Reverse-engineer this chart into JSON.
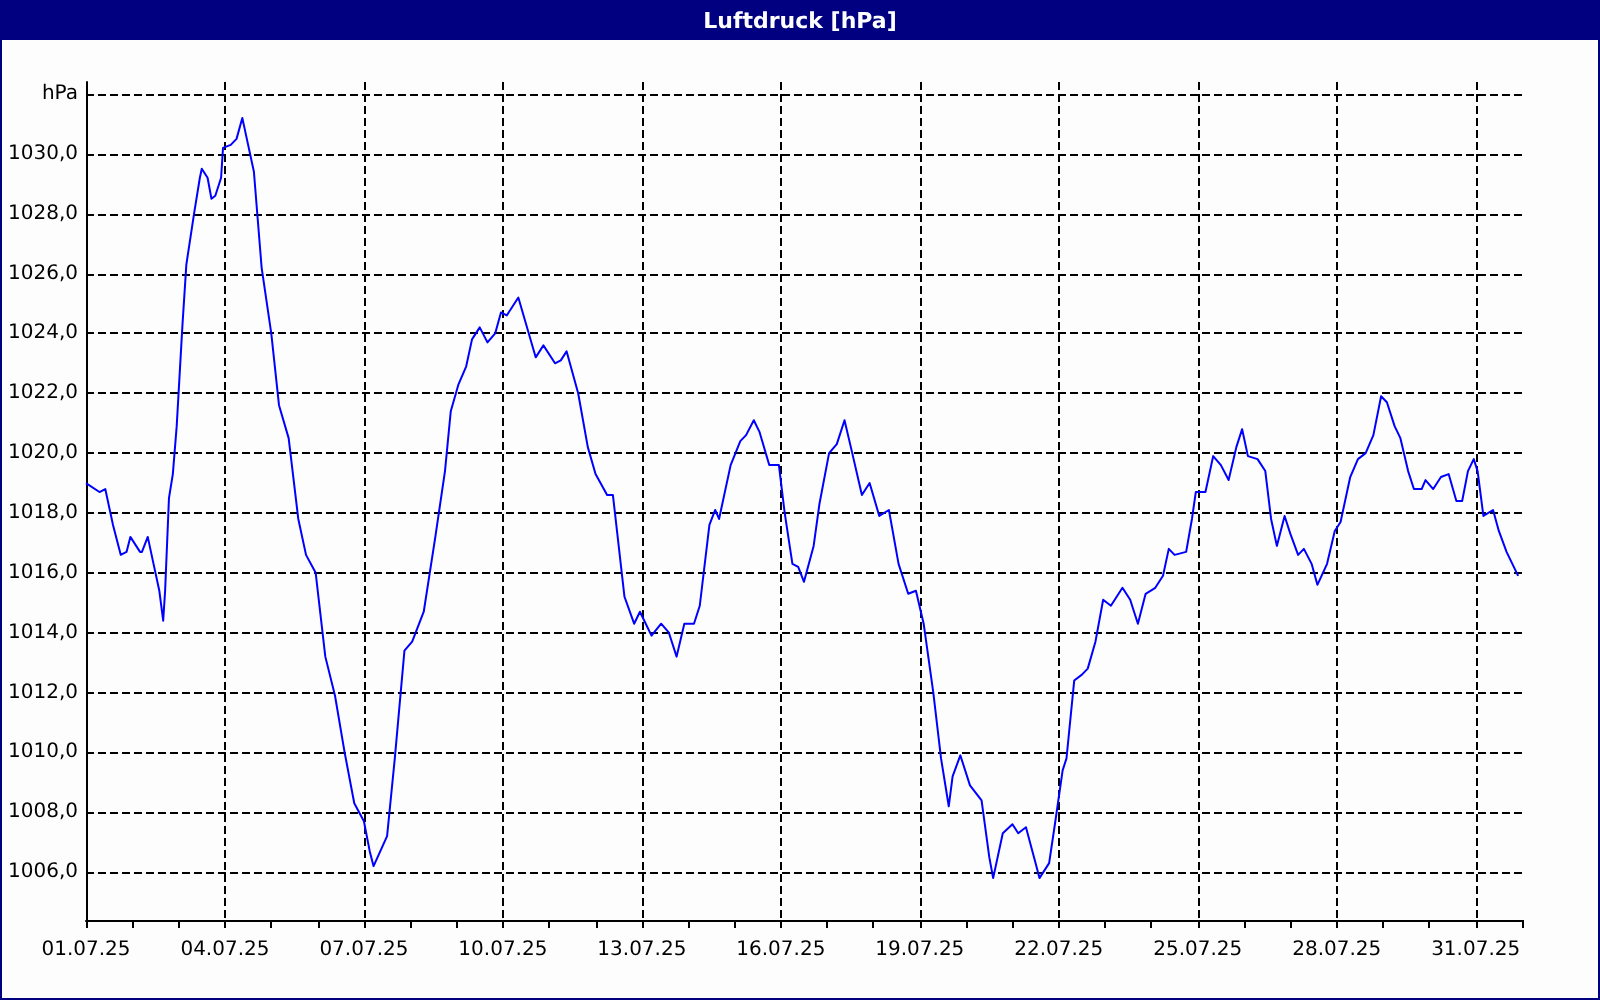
{
  "chart_data": {
    "type": "line",
    "title": "Luftdruck [hPa]",
    "grid": true,
    "marker": "none",
    "line_style": "solid",
    "xlim": [
      "--07-01T00:00",
      "--08-01T00:00"
    ],
    "xticks": [
      {
        "value": "--07-01",
        "label": "01.07.25"
      },
      {
        "value": "--07-02",
        "label": null
      },
      {
        "value": "--07-03",
        "label": null
      },
      {
        "value": "--07-04",
        "label": "04.07.25"
      },
      {
        "value": "--07-05",
        "label": null
      },
      {
        "value": "--07-06",
        "label": null
      },
      {
        "value": "--07-07",
        "label": "07.07.25"
      },
      {
        "value": "--07-08",
        "label": null
      },
      {
        "value": "--07-09",
        "label": null
      },
      {
        "value": "--07-10",
        "label": "10.07.25"
      },
      {
        "value": "--07-11",
        "label": null
      },
      {
        "value": "--07-12",
        "label": null
      },
      {
        "value": "--07-13",
        "label": "13.07.25"
      },
      {
        "value": "--07-14",
        "label": null
      },
      {
        "value": "--07-15",
        "label": null
      },
      {
        "value": "--07-16",
        "label": "16.07.25"
      },
      {
        "value": "--07-17",
        "label": null
      },
      {
        "value": "--07-18",
        "label": null
      },
      {
        "value": "--07-19",
        "label": "19.07.25"
      },
      {
        "value": "--07-20",
        "label": null
      },
      {
        "value": "--07-21",
        "label": null
      },
      {
        "value": "--07-22",
        "label": "22.07.25"
      },
      {
        "value": "--07-23",
        "label": null
      },
      {
        "value": "--07-24",
        "label": null
      },
      {
        "value": "--07-25",
        "label": "25.07.25"
      },
      {
        "value": "--07-26",
        "label": null
      },
      {
        "value": "--07-27",
        "label": null
      },
      {
        "value": "--07-28",
        "label": "28.07.25"
      },
      {
        "value": "--07-29",
        "label": null
      },
      {
        "value": "--07-30",
        "label": null
      },
      {
        "value": "--07-31",
        "label": "31.07.25"
      },
      {
        "value": "--08-01",
        "label": null
      }
    ],
    "ylim": [
      1004.4,
      1032.4
    ],
    "yticks": [
      {
        "value": 1006,
        "label": "1006,0"
      },
      {
        "value": 1008,
        "label": "1008,0"
      },
      {
        "value": 1010,
        "label": "1010,0"
      },
      {
        "value": 1012,
        "label": "1012,0"
      },
      {
        "value": 1014,
        "label": "1014,0"
      },
      {
        "value": 1016,
        "label": "1016,0"
      },
      {
        "value": 1018,
        "label": "1018,0"
      },
      {
        "value": 1020,
        "label": "1020,0"
      },
      {
        "value": 1022,
        "label": "1022,0"
      },
      {
        "value": 1024,
        "label": "1024,0"
      },
      {
        "value": 1026,
        "label": "1026,0"
      },
      {
        "value": 1028,
        "label": "1028,0"
      },
      {
        "value": 1030,
        "label": "1030,0"
      },
      {
        "value": 1032,
        "label": "hPa"
      }
    ],
    "series": [
      {
        "color": "#0000ff",
        "x": [
          "--07-01T00:00",
          "--07-01T07:00",
          "--07-01T10:00",
          "--07-01T14:00",
          "--07-01T18:00",
          "--07-01T21:00",
          "--07-01T23:00",
          "--07-02T04:00",
          "--07-02T05:00",
          "--07-02T08:00",
          "--07-02T11:00",
          "--07-02T14:00",
          "--07-02T16:00",
          "--07-02T17:00",
          "--07-02T19:00",
          "--07-02T21:00",
          "--07-02T23:00",
          "--07-03T02:00",
          "--07-03T04:00",
          "--07-03T08:00",
          "--07-03T11:00",
          "--07-03T12:00",
          "--07-03T15:00",
          "--07-03T17:00",
          "--07-03T19:00",
          "--07-03T22:00",
          "--07-03T23:00",
          "--07-04T03:00",
          "--07-04T06:00",
          "--07-04T09:00",
          "--07-04T11:00",
          "--07-04T15:00",
          "--07-04T19:00",
          "--07-05T00:00",
          "--07-05T04:00",
          "--07-05T09:00",
          "--07-05T14:00",
          "--07-05T18:00",
          "--07-05T23:00",
          "--07-06T04:00",
          "--07-06T09:00",
          "--07-06T14:00",
          "--07-06T19:00",
          "--07-07T00:00",
          "--07-07T03:00",
          "--07-07T05:00",
          "--07-07T12:00",
          "--07-07T16:00",
          "--07-07T21:00",
          "--07-08T01:00",
          "--07-08T04:00",
          "--07-08T07:00",
          "--07-08T13:00",
          "--07-08T18:00",
          "--07-08T21:00",
          "--07-09T01:00",
          "--07-09T05:00",
          "--07-09T08:00",
          "--07-09T12:00",
          "--07-09T16:00",
          "--07-09T20:00",
          "--07-09T23:00",
          "--07-10T02:00",
          "--07-10T08:00",
          "--07-10T17:00",
          "--07-10T21:00",
          "--07-11T03:00",
          "--07-11T06:00",
          "--07-11T09:00",
          "--07-11T15:00",
          "--07-11T20:00",
          "--07-12T00:00",
          "--07-12T06:00",
          "--07-12T09:00",
          "--07-12T15:00",
          "--07-12T20:00",
          "--07-12T23:00",
          "--07-13T05:00",
          "--07-13T10:00",
          "--07-13T14:00",
          "--07-13T18:00",
          "--07-13T22:00",
          "--07-14T03:00",
          "--07-14T06:00",
          "--07-14T11:00",
          "--07-14T14:00",
          "--07-14T16:00",
          "--07-14T22:00",
          "--07-15T03:00",
          "--07-15T06:00",
          "--07-15T10:00",
          "--07-15T13:00",
          "--07-15T18:00",
          "--07-15T21:00",
          "--07-15T23:00",
          "--07-16T02:00",
          "--07-16T06:00",
          "--07-16T09:00",
          "--07-16T12:00",
          "--07-16T17:00",
          "--07-16T20:00",
          "--07-17T01:00",
          "--07-17T05:00",
          "--07-17T09:00",
          "--07-17T13:00",
          "--07-17T18:00",
          "--07-17T22:00",
          "--07-18T03:00",
          "--07-18T08:00",
          "--07-18T13:00",
          "--07-18T18:00",
          "--07-18T22:00",
          "--07-19T02:00",
          "--07-19T07:00",
          "--07-19T11:00",
          "--07-19T15:00",
          "--07-19T17:00",
          "--07-19T21:00",
          "--07-20T02:00",
          "--07-20T08:00",
          "--07-20T12:00",
          "--07-20T14:00",
          "--07-20T19:00",
          "--07-21T00:00",
          "--07-21T03:00",
          "--07-21T07:00",
          "--07-21T12:00",
          "--07-21T14:00",
          "--07-21T19:00",
          "--07-21T22:00",
          "--07-22T02:00",
          "--07-22T04:00",
          "--07-22T08:00",
          "--07-22T12:00",
          "--07-22T15:00",
          "--07-22T19:00",
          "--07-22T23:00",
          "--07-23T03:00",
          "--07-23T06:00",
          "--07-23T09:00",
          "--07-23T13:00",
          "--07-23T17:00",
          "--07-23T21:00",
          "--07-24T02:00",
          "--07-24T06:00",
          "--07-24T09:00",
          "--07-24T12:00",
          "--07-24T18:00",
          "--07-24T21:00",
          "--07-24T23:00",
          "--07-25T04:00",
          "--07-25T08:00",
          "--07-25T12:00",
          "--07-25T16:00",
          "--07-25T20:00",
          "--07-25T23:00",
          "--07-26T02:00",
          "--07-26T07:00",
          "--07-26T11:00",
          "--07-26T14:00",
          "--07-26T17:00",
          "--07-26T21:00",
          "--07-27T00:00",
          "--07-27T04:00",
          "--07-27T07:00",
          "--07-27T11:00",
          "--07-27T14:00",
          "--07-27T19:00",
          "--07-27T23:00",
          "--07-28T02:00",
          "--07-28T07:00",
          "--07-28T11:00",
          "--07-28T15:00",
          "--07-28T19:00",
          "--07-28T23:00",
          "--07-29T02:00",
          "--07-29T06:00",
          "--07-29T09:00",
          "--07-29T13:00",
          "--07-29T16:00",
          "--07-29T20:00",
          "--07-29T22:00",
          "--07-30T02:00",
          "--07-30T06:00",
          "--07-30T10:00",
          "--07-30T14:00",
          "--07-30T17:00",
          "--07-30T20:00",
          "--07-30T23:00",
          "--07-31T01:00",
          "--07-31T04:00",
          "--07-31T09:00",
          "--07-31T12:00",
          "--07-31T16:00",
          "--07-31T22:00"
        ],
        "values": [
          1019.0,
          1018.7,
          1018.8,
          1017.6,
          1016.6,
          1016.7,
          1017.2,
          1016.7,
          1016.7,
          1017.2,
          1016.3,
          1015.4,
          1014.4,
          1015.4,
          1018.5,
          1019.3,
          1020.9,
          1024.3,
          1026.3,
          1028.0,
          1029.2,
          1029.5,
          1029.2,
          1028.5,
          1028.6,
          1029.2,
          1030.2,
          1030.3,
          1030.5,
          1031.2,
          1030.6,
          1029.4,
          1026.2,
          1024.0,
          1021.6,
          1020.5,
          1017.8,
          1016.6,
          1016.0,
          1013.2,
          1011.9,
          1010.0,
          1008.3,
          1007.7,
          1006.7,
          1006.2,
          1007.2,
          1009.8,
          1013.4,
          1013.7,
          1014.2,
          1014.7,
          1017.2,
          1019.4,
          1021.4,
          1022.3,
          1022.9,
          1023.8,
          1024.2,
          1023.7,
          1024.0,
          1024.7,
          1024.6,
          1025.2,
          1023.2,
          1023.6,
          1023.0,
          1023.1,
          1023.4,
          1022.0,
          1020.2,
          1019.3,
          1018.6,
          1018.6,
          1015.2,
          1014.3,
          1014.7,
          1013.9,
          1014.3,
          1014.0,
          1013.2,
          1014.3,
          1014.3,
          1014.9,
          1017.6,
          1018.1,
          1017.8,
          1019.6,
          1020.4,
          1020.6,
          1021.1,
          1020.7,
          1019.6,
          1019.6,
          1019.6,
          1018.0,
          1016.3,
          1016.2,
          1015.7,
          1016.9,
          1018.3,
          1020.0,
          1020.3,
          1021.1,
          1020.0,
          1018.6,
          1019.0,
          1017.9,
          1018.1,
          1016.3,
          1015.3,
          1015.4,
          1014.3,
          1012.0,
          1009.8,
          1008.2,
          1009.2,
          1009.9,
          1008.9,
          1008.4,
          1006.5,
          1005.8,
          1007.3,
          1007.6,
          1007.3,
          1007.5,
          1006.3,
          1005.8,
          1006.3,
          1007.6,
          1009.4,
          1009.8,
          1012.4,
          1012.6,
          1012.8,
          1013.7,
          1015.1,
          1014.9,
          1015.2,
          1015.5,
          1015.1,
          1014.3,
          1015.3,
          1015.5,
          1015.9,
          1016.8,
          1016.6,
          1016.7,
          1017.8,
          1018.7,
          1018.7,
          1019.9,
          1019.6,
          1019.1,
          1020.2,
          1020.8,
          1019.9,
          1019.8,
          1019.4,
          1017.8,
          1016.9,
          1017.9,
          1017.3,
          1016.6,
          1016.8,
          1016.3,
          1015.6,
          1016.3,
          1017.4,
          1017.7,
          1019.2,
          1019.8,
          1020.0,
          1020.6,
          1021.9,
          1021.7,
          1020.9,
          1020.5,
          1019.4,
          1018.8,
          1018.8,
          1019.1,
          1018.8,
          1019.2,
          1019.3,
          1018.4,
          1018.4,
          1019.4,
          1019.8,
          1019.4,
          1017.9,
          1018.1,
          1017.4,
          1016.7,
          1015.9
        ]
      }
    ]
  }
}
